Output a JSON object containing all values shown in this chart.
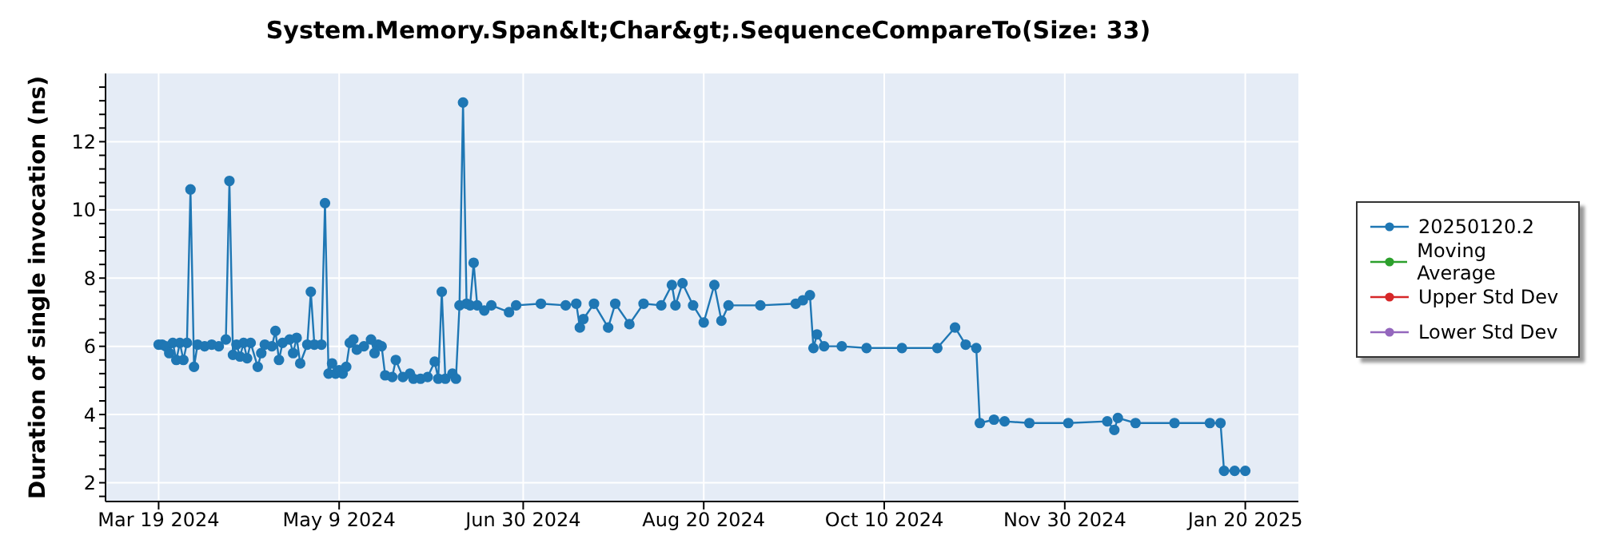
{
  "chart_data": {
    "type": "line",
    "title": "System.Memory.Span&lt;Char&gt;.SequenceCompareTo(Size: 33)",
    "ylabel": "Duration of single invocation (ns)",
    "xlim": [
      "2024-03-04",
      "2025-02-04"
    ],
    "xticks": [
      {
        "value": "2024-03-19",
        "label": "Mar 19 2024"
      },
      {
        "value": "2024-05-09",
        "label": "May 9 2024"
      },
      {
        "value": "2024-06-30",
        "label": "Jun 30 2024"
      },
      {
        "value": "2024-08-20",
        "label": "Aug 20 2024"
      },
      {
        "value": "2024-10-10",
        "label": "Oct 10 2024"
      },
      {
        "value": "2024-11-30",
        "label": "Nov 30 2024"
      },
      {
        "value": "2025-01-20",
        "label": "Jan 20 2025"
      }
    ],
    "ylim": [
      1.45,
      14
    ],
    "yticks": [
      {
        "value": 1.6,
        "label": null
      },
      2,
      {
        "value": 2.4,
        "label": null
      },
      {
        "value": 2.8,
        "label": null
      },
      {
        "value": 3.2,
        "label": null
      },
      {
        "value": 3.6,
        "label": null
      },
      4,
      {
        "value": 4.4,
        "label": null
      },
      {
        "value": 4.8,
        "label": null
      },
      {
        "value": 5.2,
        "label": null
      },
      {
        "value": 5.6,
        "label": null
      },
      6,
      {
        "value": 6.4,
        "label": null
      },
      {
        "value": 6.8,
        "label": null
      },
      {
        "value": 7.2,
        "label": null
      },
      {
        "value": 7.6,
        "label": null
      },
      8,
      {
        "value": 8.4,
        "label": null
      },
      {
        "value": 8.8,
        "label": null
      },
      {
        "value": 9.2,
        "label": null
      },
      {
        "value": 9.6,
        "label": null
      },
      10,
      {
        "value": 10.4,
        "label": null
      },
      {
        "value": 10.8,
        "label": null
      },
      {
        "value": 11.2,
        "label": null
      },
      {
        "value": 11.6,
        "label": null
      },
      12,
      {
        "value": 12.4,
        "label": null
      },
      {
        "value": 12.8,
        "label": null
      },
      {
        "value": 13.2,
        "label": null
      },
      {
        "value": 13.6,
        "label": null
      }
    ],
    "grid": true,
    "legend": "right",
    "marker": "circle",
    "line_style": "solid",
    "series": [
      {
        "name": "20250120.2",
        "color": "#1f77b4",
        "x": [
          "2024-03-19",
          "2024-03-20",
          "2024-03-21",
          "2024-03-22",
          "2024-03-23",
          "2024-03-24",
          "2024-03-25",
          "2024-03-26",
          "2024-03-27",
          "2024-03-28",
          "2024-03-29",
          "2024-03-30",
          "2024-04-01",
          "2024-04-03",
          "2024-04-05",
          "2024-04-07",
          "2024-04-08",
          "2024-04-09",
          "2024-04-10",
          "2024-04-11",
          "2024-04-12",
          "2024-04-13",
          "2024-04-14",
          "2024-04-16",
          "2024-04-17",
          "2024-04-18",
          "2024-04-20",
          "2024-04-21",
          "2024-04-22",
          "2024-04-23",
          "2024-04-25",
          "2024-04-26",
          "2024-04-27",
          "2024-04-28",
          "2024-04-30",
          "2024-05-01",
          "2024-05-02",
          "2024-05-04",
          "2024-05-05",
          "2024-05-06",
          "2024-05-07",
          "2024-05-08",
          "2024-05-09",
          "2024-05-10",
          "2024-05-11",
          "2024-05-12",
          "2024-05-13",
          "2024-05-14",
          "2024-05-16",
          "2024-05-18",
          "2024-05-19",
          "2024-05-20",
          "2024-05-21",
          "2024-05-22",
          "2024-05-24",
          "2024-05-25",
          "2024-05-27",
          "2024-05-29",
          "2024-05-30",
          "2024-06-01",
          "2024-06-03",
          "2024-06-05",
          "2024-06-06",
          "2024-06-07",
          "2024-06-08",
          "2024-06-10",
          "2024-06-11",
          "2024-06-12",
          "2024-06-13",
          "2024-06-14",
          "2024-06-15",
          "2024-06-16",
          "2024-06-17",
          "2024-06-19",
          "2024-06-21",
          "2024-06-26",
          "2024-06-28",
          "2024-07-05",
          "2024-07-12",
          "2024-07-15",
          "2024-07-16",
          "2024-07-17",
          "2024-07-20",
          "2024-07-24",
          "2024-07-26",
          "2024-07-30",
          "2024-08-03",
          "2024-08-08",
          "2024-08-11",
          "2024-08-12",
          "2024-08-14",
          "2024-08-17",
          "2024-08-20",
          "2024-08-23",
          "2024-08-25",
          "2024-08-27",
          "2024-09-05",
          "2024-09-15",
          "2024-09-17",
          "2024-09-19",
          "2024-09-20",
          "2024-09-21",
          "2024-09-23",
          "2024-09-28",
          "2024-10-05",
          "2024-10-15",
          "2024-10-25",
          "2024-10-30",
          "2024-11-02",
          "2024-11-05",
          "2024-11-06",
          "2024-11-10",
          "2024-11-13",
          "2024-11-20",
          "2024-12-01",
          "2024-12-12",
          "2024-12-14",
          "2024-12-15",
          "2024-12-20",
          "2024-12-31",
          "2025-01-10",
          "2025-01-13",
          "2025-01-14",
          "2025-01-17",
          "2025-01-20"
        ],
        "values": [
          6.05,
          6.05,
          6.0,
          5.8,
          6.1,
          5.6,
          6.1,
          5.6,
          6.1,
          10.6,
          5.4,
          6.05,
          6.0,
          6.05,
          6.0,
          6.2,
          10.85,
          5.75,
          6.05,
          5.7,
          6.1,
          5.65,
          6.1,
          5.4,
          5.8,
          6.05,
          6.0,
          6.45,
          5.6,
          6.1,
          6.2,
          5.8,
          6.25,
          5.5,
          6.05,
          7.6,
          6.05,
          6.05,
          10.2,
          5.2,
          5.5,
          5.2,
          5.3,
          5.2,
          5.4,
          6.1,
          6.2,
          5.9,
          6.0,
          6.2,
          5.8,
          6.05,
          6.0,
          5.15,
          5.1,
          5.6,
          5.1,
          5.2,
          5.05,
          5.05,
          5.1,
          5.55,
          5.05,
          7.6,
          5.05,
          5.2,
          5.05,
          7.2,
          13.15,
          7.25,
          7.2,
          8.45,
          7.2,
          7.05,
          7.2,
          7.0,
          7.2,
          7.25,
          7.2,
          7.25,
          6.55,
          6.8,
          7.25,
          6.55,
          7.25,
          6.65,
          7.25,
          7.2,
          7.8,
          7.2,
          7.85,
          7.2,
          6.7,
          7.8,
          6.75,
          7.2,
          7.2,
          7.25,
          7.35,
          7.5,
          5.95,
          6.35,
          6.0,
          6.0,
          5.95,
          5.95,
          5.95,
          6.55,
          6.05,
          5.95,
          3.75,
          3.85,
          3.8,
          3.75,
          3.75,
          3.8,
          3.55,
          3.9,
          3.75,
          3.75,
          3.75,
          3.75,
          2.35,
          2.35,
          2.35
        ]
      },
      {
        "name": "Moving Average",
        "color": "#2ca02c"
      },
      {
        "name": "Upper Std Dev",
        "color": "#d62728"
      },
      {
        "name": "Lower Std Dev",
        "color": "#9467bd"
      }
    ]
  }
}
